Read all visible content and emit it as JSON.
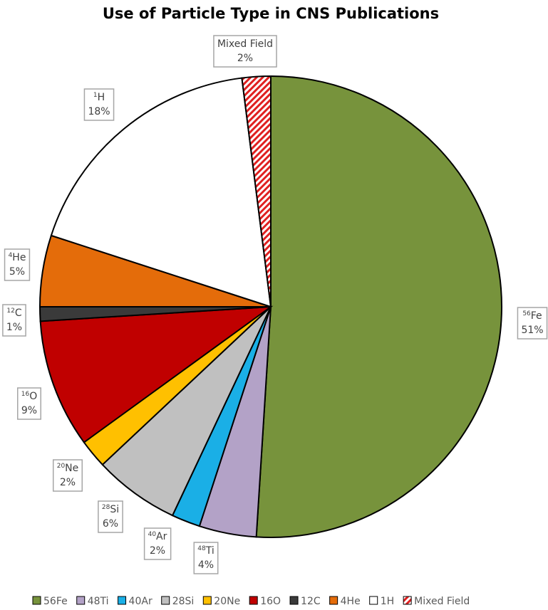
{
  "chart_data": {
    "type": "pie",
    "title": "Use of Particle Type in CNS Publications",
    "slices": [
      {
        "name": "56Fe",
        "mass": "56",
        "element": "Fe",
        "value": 51,
        "label": "51%",
        "color": "#77933C"
      },
      {
        "name": "48Ti",
        "mass": "48",
        "element": "Ti",
        "value": 4,
        "label": "4%",
        "color": "#B3A2C7"
      },
      {
        "name": "40Ar",
        "mass": "40",
        "element": "Ar",
        "value": 2,
        "label": "2%",
        "color": "#1AAFE6"
      },
      {
        "name": "28Si",
        "mass": "28",
        "element": "Si",
        "value": 6,
        "label": "6%",
        "color": "#C0C0C0"
      },
      {
        "name": "20Ne",
        "mass": "20",
        "element": "Ne",
        "value": 2,
        "label": "2%",
        "color": "#FFC000"
      },
      {
        "name": "16O",
        "mass": "16",
        "element": "O",
        "value": 9,
        "label": "9%",
        "color": "#C00000"
      },
      {
        "name": "12C",
        "mass": "12",
        "element": "C",
        "value": 1,
        "label": "1%",
        "color": "#3A3A3A"
      },
      {
        "name": "4He",
        "mass": "4",
        "element": "He",
        "value": 5,
        "label": "5%",
        "color": "#E46C0A"
      },
      {
        "name": "1H",
        "mass": "1",
        "element": "H",
        "value": 18,
        "label": "18%",
        "color": "#FFFFFF"
      },
      {
        "name": "Mixed Field",
        "mass": "",
        "element": "Mixed Field",
        "value": 2,
        "label": "2%",
        "color": "hatch-red"
      }
    ],
    "legend_position": "bottom"
  }
}
